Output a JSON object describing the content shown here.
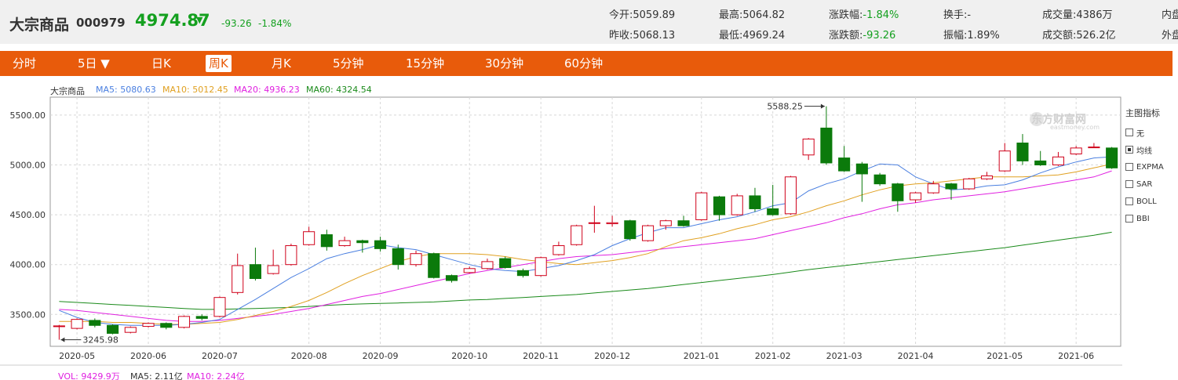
{
  "quote": {
    "name": "大宗商品",
    "code": "000979",
    "price": "4974.87",
    "arrow": "▼",
    "change": "-93.26",
    "change_pct": "-1.84%",
    "stats": [
      {
        "label": "今开:",
        "value": "5059.89",
        "green": false
      },
      {
        "label": "昨收:",
        "value": "5068.13",
        "green": false
      },
      {
        "label": "最高:",
        "value": "5064.82",
        "green": false
      },
      {
        "label": "最低:",
        "value": "4969.24",
        "green": false
      },
      {
        "label": "涨跌幅:",
        "value": "-1.84%",
        "green": true
      },
      {
        "label": "涨跌额:",
        "value": "-93.26",
        "green": true
      },
      {
        "label": "换手:",
        "value": "-",
        "green": false
      },
      {
        "label": "振幅:",
        "value": "1.89%",
        "green": false
      },
      {
        "label": "成交量:",
        "value": "4386万",
        "green": false
      },
      {
        "label": "成交额:",
        "value": "526.2亿",
        "green": false
      },
      {
        "label": "内盘",
        "value": "",
        "green": false
      },
      {
        "label": "外盘",
        "value": "",
        "green": false
      }
    ]
  },
  "tabs": [
    {
      "label": "分时",
      "active": false
    },
    {
      "label": "5日 ▼",
      "active": false
    },
    {
      "label": "日K",
      "active": false
    },
    {
      "label": "周K",
      "active": true
    },
    {
      "label": "月K",
      "active": false
    },
    {
      "label": "5分钟",
      "active": false
    },
    {
      "label": "15分钟",
      "active": false
    },
    {
      "label": "30分钟",
      "active": false
    },
    {
      "label": "60分钟",
      "active": false
    }
  ],
  "ma_legend": {
    "name": "大宗商品",
    "ma5": "MA5: 5080.63",
    "ma10": "MA10: 5012.45",
    "ma20": "MA20: 4936.23",
    "ma60": "MA60: 4324.54"
  },
  "colors": {
    "up": "#d0021b",
    "down": "#0b7a0b",
    "ma5": "#4a7fe0",
    "ma10": "#e0a020",
    "ma20": "#e020e0",
    "ma60": "#1a8a1a",
    "accent": "#e85b0b",
    "quote_green": "#14a01f"
  },
  "indicator_panel": {
    "title": "主图指标",
    "items": [
      {
        "label": "无",
        "checked": false
      },
      {
        "label": "均线",
        "checked": true
      },
      {
        "label": "EXPMA",
        "checked": false
      },
      {
        "label": "SAR",
        "checked": false
      },
      {
        "label": "BOLL",
        "checked": false
      },
      {
        "label": "BBI",
        "checked": false
      }
    ]
  },
  "watermark": {
    "text": "东方财富网",
    "sub": "eastmoney.com"
  },
  "volume_legend": {
    "vol": "VOL: 9429.9万",
    "ma5": "MA5: 2.11亿",
    "ma10": "MA10: 2.24亿"
  },
  "chart_data": {
    "type": "candlestick",
    "ylim": [
      3180,
      5680
    ],
    "y_ticks": [
      {
        "value": 3500,
        "label": "3500.00"
      },
      {
        "value": 4000,
        "label": "4000.00"
      },
      {
        "value": 4500,
        "label": "4500.00"
      },
      {
        "value": 5000,
        "label": "5000.00"
      },
      {
        "value": 5500,
        "label": "5500.00"
      }
    ],
    "x_labels": [
      {
        "index": 1,
        "label": "2020-05"
      },
      {
        "index": 5,
        "label": "2020-06"
      },
      {
        "index": 9,
        "label": "2020-07"
      },
      {
        "index": 14,
        "label": "2020-08"
      },
      {
        "index": 18,
        "label": "2020-09"
      },
      {
        "index": 23,
        "label": "2020-10"
      },
      {
        "index": 27,
        "label": "2020-11"
      },
      {
        "index": 31,
        "label": "2020-12"
      },
      {
        "index": 36,
        "label": "2021-01"
      },
      {
        "index": 40,
        "label": "2021-02"
      },
      {
        "index": 44,
        "label": "2021-03"
      },
      {
        "index": 48,
        "label": "2021-04"
      },
      {
        "index": 53,
        "label": "2021-05"
      },
      {
        "index": 57,
        "label": "2021-06"
      }
    ],
    "candles": [
      {
        "o": 3380,
        "c": 3385,
        "h": 3395,
        "l": 3245.98
      },
      {
        "o": 3360,
        "c": 3450,
        "h": 3460,
        "l": 3350
      },
      {
        "o": 3440,
        "c": 3390,
        "h": 3460,
        "l": 3370
      },
      {
        "o": 3390,
        "c": 3310,
        "h": 3400,
        "l": 3300
      },
      {
        "o": 3320,
        "c": 3370,
        "h": 3380,
        "l": 3310
      },
      {
        "o": 3380,
        "c": 3410,
        "h": 3420,
        "l": 3370
      },
      {
        "o": 3410,
        "c": 3370,
        "h": 3420,
        "l": 3350
      },
      {
        "o": 3370,
        "c": 3480,
        "h": 3490,
        "l": 3360
      },
      {
        "o": 3480,
        "c": 3460,
        "h": 3500,
        "l": 3440
      },
      {
        "o": 3480,
        "c": 3670,
        "h": 3680,
        "l": 3470
      },
      {
        "o": 3720,
        "c": 3990,
        "h": 4110,
        "l": 3700
      },
      {
        "o": 4000,
        "c": 3860,
        "h": 4170,
        "l": 3840
      },
      {
        "o": 3910,
        "c": 3990,
        "h": 4150,
        "l": 3900
      },
      {
        "o": 4000,
        "c": 4190,
        "h": 4210,
        "l": 3990
      },
      {
        "o": 4200,
        "c": 4330,
        "h": 4380,
        "l": 4190
      },
      {
        "o": 4300,
        "c": 4180,
        "h": 4350,
        "l": 4140
      },
      {
        "o": 4190,
        "c": 4240,
        "h": 4280,
        "l": 4180
      },
      {
        "o": 4240,
        "c": 4220,
        "h": 4250,
        "l": 4120
      },
      {
        "o": 4240,
        "c": 4160,
        "h": 4280,
        "l": 4130
      },
      {
        "o": 4160,
        "c": 4000,
        "h": 4200,
        "l": 3950
      },
      {
        "o": 4000,
        "c": 4110,
        "h": 4140,
        "l": 3980
      },
      {
        "o": 4110,
        "c": 3870,
        "h": 4120,
        "l": 3860
      },
      {
        "o": 3890,
        "c": 3840,
        "h": 3900,
        "l": 3820
      },
      {
        "o": 3920,
        "c": 3960,
        "h": 3980,
        "l": 3910
      },
      {
        "o": 3960,
        "c": 4030,
        "h": 4060,
        "l": 3950
      },
      {
        "o": 4060,
        "c": 3970,
        "h": 4080,
        "l": 3960
      },
      {
        "o": 3940,
        "c": 3890,
        "h": 3960,
        "l": 3870
      },
      {
        "o": 3890,
        "c": 4070,
        "h": 4080,
        "l": 3880
      },
      {
        "o": 4100,
        "c": 4190,
        "h": 4230,
        "l": 4090
      },
      {
        "o": 4200,
        "c": 4390,
        "h": 4400,
        "l": 4190
      },
      {
        "o": 4420,
        "c": 4420,
        "h": 4590,
        "l": 4320
      },
      {
        "o": 4410,
        "c": 4420,
        "h": 4490,
        "l": 4380
      },
      {
        "o": 4440,
        "c": 4260,
        "h": 4450,
        "l": 4240
      },
      {
        "o": 4240,
        "c": 4390,
        "h": 4400,
        "l": 4230
      },
      {
        "o": 4390,
        "c": 4440,
        "h": 4450,
        "l": 4350
      },
      {
        "o": 4440,
        "c": 4390,
        "h": 4490,
        "l": 4380
      },
      {
        "o": 4450,
        "c": 4720,
        "h": 4730,
        "l": 4440
      },
      {
        "o": 4680,
        "c": 4500,
        "h": 4690,
        "l": 4440
      },
      {
        "o": 4500,
        "c": 4690,
        "h": 4710,
        "l": 4490
      },
      {
        "o": 4690,
        "c": 4560,
        "h": 4770,
        "l": 4530
      },
      {
        "o": 4560,
        "c": 4500,
        "h": 4800,
        "l": 4490
      },
      {
        "o": 4510,
        "c": 4880,
        "h": 4890,
        "l": 4500
      },
      {
        "o": 5100,
        "c": 5260,
        "h": 5270,
        "l": 5050
      },
      {
        "o": 5370,
        "c": 5020,
        "h": 5588.25,
        "l": 5000
      },
      {
        "o": 5070,
        "c": 4940,
        "h": 5190,
        "l": 4930
      },
      {
        "o": 5010,
        "c": 4910,
        "h": 5030,
        "l": 4630
      },
      {
        "o": 4900,
        "c": 4810,
        "h": 4920,
        "l": 4790
      },
      {
        "o": 4810,
        "c": 4640,
        "h": 4820,
        "l": 4530
      },
      {
        "o": 4650,
        "c": 4720,
        "h": 4730,
        "l": 4620
      },
      {
        "o": 4720,
        "c": 4810,
        "h": 4840,
        "l": 4710
      },
      {
        "o": 4810,
        "c": 4760,
        "h": 4820,
        "l": 4650
      },
      {
        "o": 4760,
        "c": 4860,
        "h": 4870,
        "l": 4750
      },
      {
        "o": 4860,
        "c": 4890,
        "h": 4930,
        "l": 4850
      },
      {
        "o": 4940,
        "c": 5140,
        "h": 5220,
        "l": 4930
      },
      {
        "o": 5220,
        "c": 5040,
        "h": 5310,
        "l": 5000
      },
      {
        "o": 5040,
        "c": 5000,
        "h": 5140,
        "l": 4990
      },
      {
        "o": 5000,
        "c": 5080,
        "h": 5130,
        "l": 4990
      },
      {
        "o": 5110,
        "c": 5170,
        "h": 5190,
        "l": 5100
      },
      {
        "o": 5180,
        "c": 5180,
        "h": 5220,
        "l": 5170
      },
      {
        "o": 5170,
        "c": 4970,
        "h": 5180,
        "l": 4960
      }
    ],
    "ma5": [
      3540,
      3470,
      3420,
      3400,
      3390,
      3390,
      3390,
      3400,
      3420,
      3450,
      3550,
      3650,
      3760,
      3870,
      3960,
      4060,
      4110,
      4150,
      4200,
      4170,
      4150,
      4100,
      4050,
      4000,
      3960,
      3940,
      3930,
      3960,
      3990,
      4040,
      4100,
      4190,
      4260,
      4320,
      4370,
      4370,
      4410,
      4450,
      4480,
      4530,
      4590,
      4620,
      4740,
      4810,
      4860,
      4940,
      5010,
      5000,
      4880,
      4810,
      4750,
      4760,
      4790,
      4800,
      4850,
      4920,
      4980,
      5030,
      5070,
      5080
    ],
    "ma10": [
      3430,
      3430,
      3430,
      3420,
      3420,
      3410,
      3400,
      3400,
      3410,
      3420,
      3450,
      3490,
      3530,
      3580,
      3640,
      3720,
      3810,
      3890,
      3960,
      4030,
      4080,
      4110,
      4110,
      4110,
      4100,
      4080,
      4050,
      4030,
      4010,
      4000,
      4020,
      4040,
      4070,
      4110,
      4180,
      4240,
      4270,
      4310,
      4360,
      4400,
      4450,
      4480,
      4530,
      4590,
      4640,
      4700,
      4750,
      4790,
      4810,
      4820,
      4840,
      4860,
      4880,
      4880,
      4880,
      4890,
      4900,
      4930,
      4970,
      5010
    ],
    "ma20": [
      3550,
      3540,
      3520,
      3500,
      3480,
      3460,
      3440,
      3430,
      3430,
      3440,
      3460,
      3480,
      3500,
      3530,
      3560,
      3600,
      3640,
      3680,
      3710,
      3750,
      3790,
      3830,
      3870,
      3910,
      3940,
      3970,
      4000,
      4030,
      4060,
      4080,
      4090,
      4100,
      4120,
      4140,
      4160,
      4180,
      4200,
      4220,
      4240,
      4260,
      4300,
      4340,
      4380,
      4420,
      4470,
      4510,
      4560,
      4600,
      4620,
      4650,
      4670,
      4690,
      4710,
      4730,
      4760,
      4790,
      4820,
      4850,
      4880,
      4940
    ],
    "ma60": [
      3630,
      3620,
      3610,
      3600,
      3590,
      3580,
      3570,
      3560,
      3550,
      3550,
      3555,
      3560,
      3565,
      3570,
      3580,
      3590,
      3600,
      3605,
      3610,
      3615,
      3620,
      3625,
      3635,
      3645,
      3650,
      3660,
      3670,
      3680,
      3690,
      3700,
      3715,
      3730,
      3745,
      3760,
      3780,
      3800,
      3820,
      3840,
      3860,
      3880,
      3900,
      3925,
      3950,
      3970,
      3990,
      4010,
      4030,
      4050,
      4070,
      4090,
      4110,
      4130,
      4150,
      4170,
      4195,
      4220,
      4245,
      4270,
      4295,
      4324.54
    ],
    "annotations": [
      {
        "index": 43,
        "value": 5588.25,
        "label": "5588.25",
        "side": "left"
      },
      {
        "index": 0,
        "value": 3245.98,
        "label": "3245.98",
        "side": "right"
      }
    ]
  }
}
